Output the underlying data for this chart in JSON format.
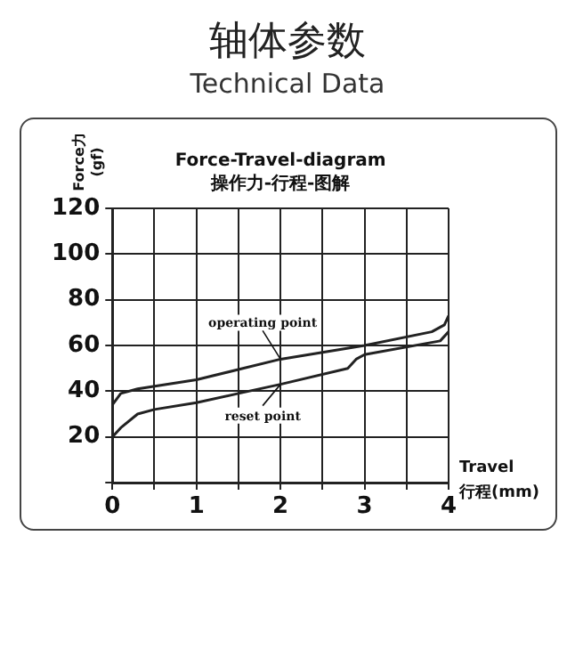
{
  "chart_data": {
    "type": "line",
    "title": "轴体参数",
    "subtitle": "Technical Data",
    "xlabel": "Travel 行程(mm)",
    "ylabel": "Force力 (gf)",
    "annotations": [
      "Force-Travel-diagram",
      "操作力-行程-图解",
      {
        "text": "operating point",
        "x": 2,
        "y": 54
      },
      {
        "text": "reset point",
        "x": 2,
        "y": 43
      }
    ],
    "xlim": [
      0,
      4
    ],
    "ylim": [
      0,
      120
    ],
    "xticks": [
      0,
      {
        "value": 0.5,
        "label": null
      },
      1,
      {
        "value": 1.5,
        "label": null
      },
      2,
      {
        "value": 2.5,
        "label": null
      },
      3,
      {
        "value": 3.5,
        "label": null
      },
      4
    ],
    "yticks": [
      {
        "value": 0,
        "label": null
      },
      20,
      40,
      60,
      80,
      100,
      120
    ],
    "grid": true,
    "legend": false,
    "marker": "none",
    "line_style": "solid",
    "series": [
      {
        "color": "#222222",
        "x": [
          0,
          0.1,
          0.3,
          1,
          2,
          3,
          3.8,
          3.95,
          4
        ],
        "values": [
          34,
          39,
          41,
          45,
          54,
          60,
          66,
          69,
          73
        ]
      },
      {
        "color": "#222222",
        "x": [
          0,
          0.1,
          0.3,
          0.5,
          1,
          1.5,
          2,
          2.8,
          2.9,
          3,
          3.9,
          4
        ],
        "values": [
          20,
          24,
          30,
          32,
          35,
          39,
          43,
          50,
          54,
          56,
          62,
          66
        ]
      }
    ]
  }
}
